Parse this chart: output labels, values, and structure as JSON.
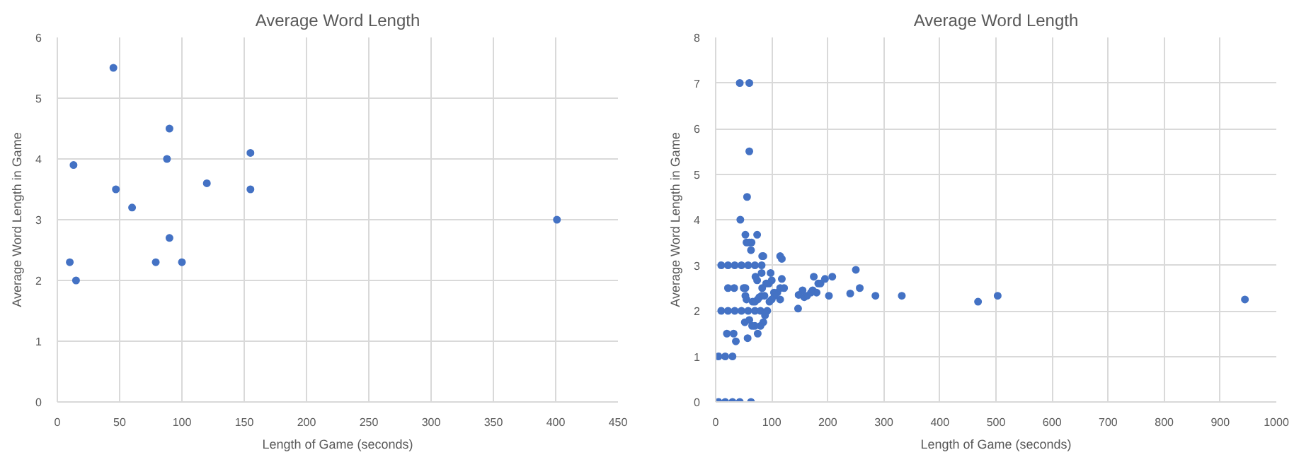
{
  "chart_data": [
    {
      "type": "scatter",
      "title": "Average Word Length",
      "xlabel": "Length of Game (seconds)",
      "ylabel": "Average Word Length in Game",
      "marker": "circle",
      "grid": true,
      "xlim": [
        0,
        450
      ],
      "xticks": [
        0,
        50,
        100,
        150,
        200,
        250,
        300,
        350,
        400,
        450
      ],
      "ylim": [
        0,
        6
      ],
      "yticks": [
        0,
        1,
        2,
        3,
        4,
        5,
        6
      ],
      "series": [
        {
          "color": "#4472c4",
          "x": [
            10,
            13,
            15,
            45,
            47,
            60,
            79,
            88,
            90,
            90,
            100,
            120,
            155,
            155,
            401
          ],
          "values": [
            2.3,
            3.9,
            2.0,
            5.5,
            3.5,
            3.2,
            2.3,
            4.0,
            4.5,
            2.7,
            2.3,
            3.6,
            4.1,
            3.5,
            3.0
          ]
        }
      ]
    },
    {
      "type": "scatter",
      "title": "Average Word Length",
      "xlabel": "Length of Game (seconds)",
      "ylabel": "Average Word Length in Game",
      "marker": "circle",
      "grid": true,
      "xlim": [
        0,
        1000
      ],
      "xticks": [
        0,
        100,
        200,
        300,
        400,
        500,
        600,
        700,
        800,
        900,
        1000
      ],
      "ylim": [
        0,
        8
      ],
      "yticks": [
        0,
        1,
        2,
        3,
        4,
        5,
        6,
        7,
        8
      ],
      "series": [
        {
          "color": "#4472c4",
          "x": [
            5,
            17,
            30,
            43,
            63,
            5,
            17,
            30,
            20,
            32,
            36,
            10,
            22,
            34,
            46,
            58,
            70,
            80,
            10,
            22,
            34,
            46,
            58,
            70,
            82,
            22,
            33,
            50,
            53,
            43,
            60,
            60,
            56,
            44,
            53,
            74,
            55,
            60,
            64,
            63,
            85,
            83,
            115,
            118,
            71,
            74,
            82,
            98,
            95,
            90,
            100,
            83,
            104,
            110,
            115,
            118,
            122,
            115,
            105,
            100,
            96,
            92,
            88,
            85,
            80,
            75,
            70,
            65,
            60,
            57,
            52,
            66,
            70,
            75,
            78,
            82,
            87,
            55,
            53,
            147,
            148,
            155,
            158,
            163,
            170,
            173,
            175,
            180,
            183,
            187,
            195,
            202,
            208,
            240,
            250,
            257,
            285,
            332,
            468,
            503,
            944
          ],
          "values": [
            0,
            0,
            0,
            0,
            0,
            1,
            1,
            1,
            1.5,
            1.5,
            1.33,
            2,
            2,
            2,
            2,
            2,
            2,
            2,
            3,
            3,
            3,
            3,
            3,
            3,
            3,
            2.5,
            2.5,
            2.5,
            2.5,
            7,
            7,
            5.5,
            4.5,
            4.0,
            3.67,
            3.67,
            3.5,
            3.5,
            3.5,
            3.33,
            3.2,
            3.2,
            3.2,
            3.14,
            2.75,
            2.67,
            2.83,
            2.83,
            2.6,
            2.6,
            2.67,
            2.5,
            2.4,
            2.4,
            2.5,
            2.7,
            2.5,
            2.25,
            2.33,
            2.25,
            2.2,
            2.0,
            1.9,
            1.75,
            1.67,
            1.5,
            1.67,
            1.67,
            1.8,
            1.4,
            1.75,
            2.2,
            2.2,
            2.25,
            2.3,
            2.33,
            2.33,
            2.25,
            2.33,
            2.05,
            2.35,
            2.45,
            2.3,
            2.33,
            2.4,
            2.45,
            2.75,
            2.4,
            2.6,
            2.6,
            2.7,
            2.33,
            2.75,
            2.38,
            2.9,
            2.5,
            2.33,
            2.33,
            2.2,
            2.33,
            2.25
          ]
        }
      ]
    }
  ]
}
